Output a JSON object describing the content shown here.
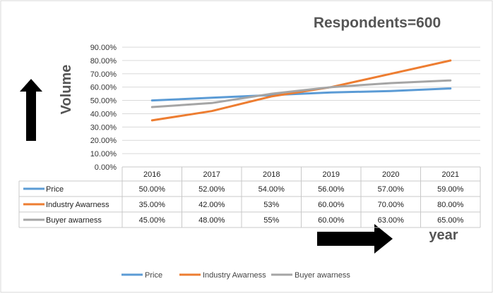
{
  "chart_data": {
    "type": "line",
    "title": "Respondents=600",
    "ylabel": "Volume",
    "xlabel": "year",
    "categories": [
      "2016",
      "2017",
      "2018",
      "2019",
      "2020",
      "2021"
    ],
    "ylim": [
      0,
      90
    ],
    "y_ticks": [
      "0.00%",
      "10.00%",
      "20.00%",
      "30.00%",
      "40.00%",
      "50.00%",
      "60.00%",
      "70.00%",
      "80.00%",
      "90.00%"
    ],
    "grid": true,
    "legend_position": "bottom",
    "series": [
      {
        "name": "Price",
        "color": "#5B9BD5",
        "values": [
          50,
          52,
          54,
          56,
          57,
          59
        ],
        "labels": [
          "50.00%",
          "52.00%",
          "54.00%",
          "56.00%",
          "57.00%",
          "59.00%"
        ]
      },
      {
        "name": "Industry Awarness",
        "color": "#ED7D31",
        "values": [
          35,
          42,
          53,
          60,
          70,
          80
        ],
        "labels": [
          "35.00%",
          "42.00%",
          "53%",
          "60.00%",
          "70.00%",
          "80.00%"
        ]
      },
      {
        "name": "Buyer awarness",
        "color": "#A5A5A5",
        "values": [
          45,
          48,
          55,
          60,
          63,
          65
        ],
        "labels": [
          "45.00%",
          "48.00%",
          "55%",
          "60.00%",
          "63.00%",
          "65.00%"
        ]
      }
    ]
  }
}
